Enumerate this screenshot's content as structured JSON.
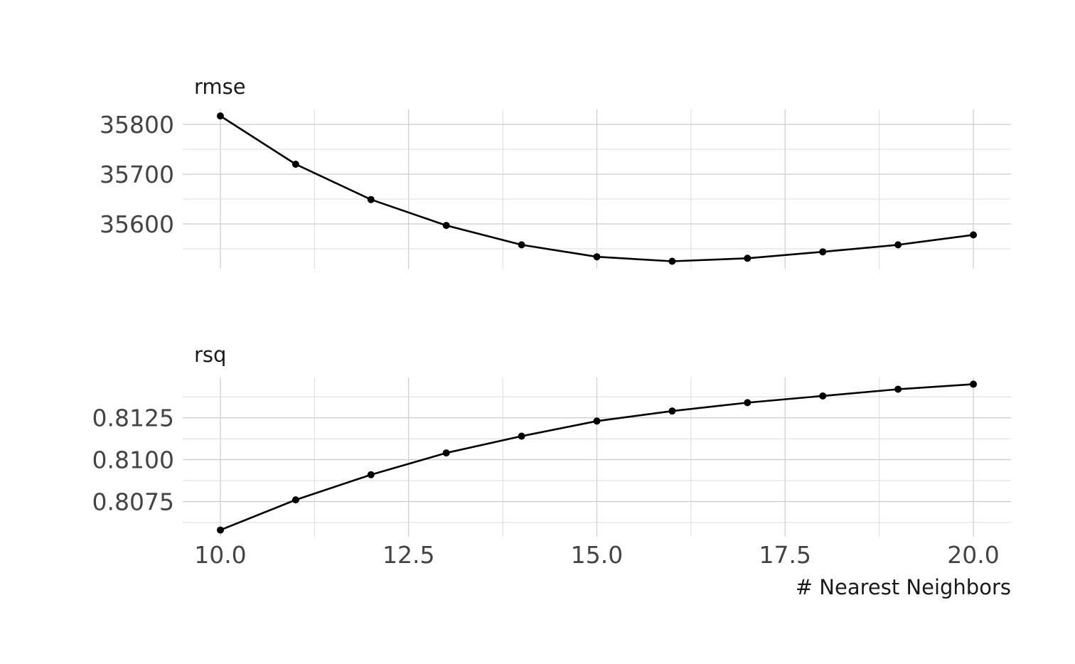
{
  "chart_data": {
    "type": "line",
    "xlabel": "# Nearest Neighbors",
    "x": [
      10,
      11,
      12,
      13,
      14,
      15,
      16,
      17,
      18,
      19,
      20
    ],
    "x_ticks": [
      10.0,
      12.5,
      15.0,
      17.5,
      20.0
    ],
    "x_tick_labels": [
      "10.0",
      "12.5",
      "15.0",
      "17.5",
      "20.0"
    ],
    "xlim": [
      9.5,
      20.5
    ],
    "grid": true,
    "facets": [
      {
        "label": "rmse",
        "series": [
          {
            "values": [
              35817,
              35720,
              35649,
              35597,
              35558,
              35534,
              35525,
              35531,
              35544,
              35558,
              35578
            ]
          }
        ],
        "y_ticks": [
          35600,
          35700,
          35800
        ],
        "y_tick_labels": [
          "35600",
          "35700",
          "35800"
        ],
        "ylim": [
          35510,
          35830
        ]
      },
      {
        "label": "rsq",
        "series": [
          {
            "values": [
              0.8058,
              0.8076,
              0.8091,
              0.8104,
              0.8114,
              0.8123,
              0.8129,
              0.8134,
              0.8138,
              0.8142,
              0.8145
            ]
          }
        ],
        "y_ticks": [
          0.8075,
          0.81,
          0.8125
        ],
        "y_tick_labels": [
          "0.8075",
          "0.8100",
          "0.8125"
        ],
        "ylim": [
          0.8054,
          0.8149
        ]
      }
    ]
  }
}
